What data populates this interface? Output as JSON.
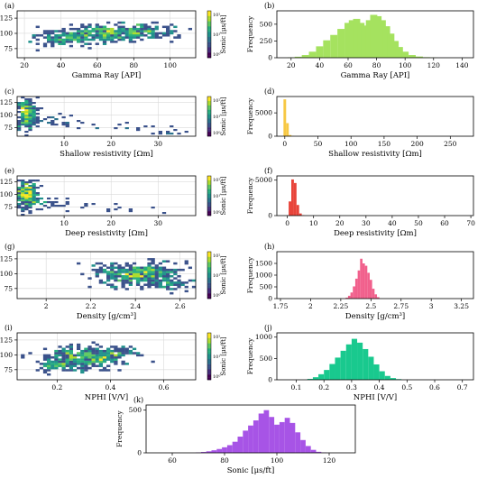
{
  "figure": {
    "colorbar_label": "Sonic [μs/ft]",
    "colorbar_ticks": [
      "10²",
      "10¹",
      "10⁰"
    ],
    "frequency_label": "Frequency"
  },
  "chart_data": [
    {
      "id": "a",
      "panel_label": "(a)",
      "type": "heatmap",
      "xlabel": "Gamma Ray [API]",
      "ylabel": "",
      "xlim": [
        16,
        114
      ],
      "ylim": [
        60,
        137
      ],
      "xticks": [
        20,
        40,
        60,
        80,
        100
      ],
      "yticks": [
        75,
        100,
        125
      ],
      "blobs": [
        {
          "cx": 65,
          "cy": 100,
          "sx": 14,
          "sy": 7,
          "angle": 0.18,
          "n": 320
        },
        {
          "cx": 40,
          "cy": 90,
          "sx": 9,
          "sy": 7,
          "angle": 0.3,
          "n": 90
        },
        {
          "cx": 90,
          "cy": 102,
          "sx": 9,
          "sy": 6,
          "angle": 0,
          "n": 70
        }
      ]
    },
    {
      "id": "b",
      "panel_label": "(b)",
      "type": "bar",
      "xlabel": "Gamma Ray [API]",
      "ylabel": "",
      "xlim": [
        10,
        148
      ],
      "ylim": [
        0,
        700
      ],
      "xticks": [
        20,
        40,
        60,
        80,
        100,
        120,
        140
      ],
      "yticks": [
        0,
        250,
        500
      ],
      "color": "#a5e25f",
      "bins": [
        [
          20,
          5
        ],
        [
          25,
          15
        ],
        [
          30,
          40
        ],
        [
          35,
          90
        ],
        [
          40,
          170
        ],
        [
          45,
          260
        ],
        [
          50,
          340
        ],
        [
          55,
          430
        ],
        [
          60,
          520
        ],
        [
          63,
          560
        ],
        [
          66,
          580
        ],
        [
          69,
          520
        ],
        [
          72,
          480
        ],
        [
          75,
          560
        ],
        [
          78,
          640
        ],
        [
          81,
          620
        ],
        [
          84,
          560
        ],
        [
          87,
          470
        ],
        [
          90,
          360
        ],
        [
          93,
          250
        ],
        [
          96,
          160
        ],
        [
          100,
          90
        ],
        [
          105,
          40
        ],
        [
          110,
          18
        ],
        [
          115,
          8
        ],
        [
          120,
          3
        ]
      ]
    },
    {
      "id": "c",
      "panel_label": "(c)",
      "type": "heatmap",
      "xlabel": "Shallow resistivity [Ωm]",
      "ylabel": "",
      "xlim": [
        0,
        38
      ],
      "ylim": [
        58,
        137
      ],
      "xticks": [
        10,
        20,
        30
      ],
      "yticks": [
        75,
        100,
        125
      ],
      "blobs": [
        {
          "cx": 2,
          "cy": 103,
          "sx": 1.1,
          "sy": 15,
          "angle": 0,
          "n": 260
        },
        {
          "cx": 7,
          "cy": 88,
          "sx": 3,
          "sy": 6,
          "angle": 0,
          "n": 25
        },
        {
          "cx": 20,
          "cy": 75,
          "sx": 8,
          "sy": 6,
          "angle": 0,
          "n": 20
        },
        {
          "cx": 33,
          "cy": 64,
          "sx": 1.5,
          "sy": 1.5,
          "angle": 0,
          "n": 8
        }
      ]
    },
    {
      "id": "d",
      "panel_label": "(d)",
      "type": "bar",
      "xlabel": "Shallow resistivity [Ωm]",
      "ylabel": "Frequency",
      "xlim": [
        -12,
        285
      ],
      "ylim": [
        0,
        8500
      ],
      "xticks": [
        0,
        50,
        100,
        150,
        200,
        250
      ],
      "yticks": [
        0,
        5000
      ],
      "color": "#f7c843",
      "bins": [
        [
          0,
          7900
        ],
        [
          4,
          2800
        ],
        [
          8,
          250
        ],
        [
          12,
          40
        ]
      ]
    },
    {
      "id": "e",
      "panel_label": "(e)",
      "type": "heatmap",
      "xlabel": "Deep resistivity [Ωm]",
      "ylabel": "",
      "xlim": [
        0,
        38
      ],
      "ylim": [
        58,
        137
      ],
      "xticks": [
        10,
        20,
        30
      ],
      "yticks": [
        75,
        100,
        125
      ],
      "blobs": [
        {
          "cx": 2,
          "cy": 100,
          "sx": 1.2,
          "sy": 13,
          "angle": 0,
          "n": 240
        },
        {
          "cx": 7,
          "cy": 82,
          "sx": 3,
          "sy": 7,
          "angle": 0,
          "n": 25
        },
        {
          "cx": 22,
          "cy": 72,
          "sx": 8,
          "sy": 6,
          "angle": 0,
          "n": 18
        }
      ]
    },
    {
      "id": "f",
      "panel_label": "(f)",
      "type": "bar",
      "xlabel": "Deep resistivity [Ωm]",
      "ylabel": "Frequency",
      "xlim": [
        -4,
        71
      ],
      "ylim": [
        0,
        5600
      ],
      "xticks": [
        0,
        10,
        20,
        30,
        40,
        50,
        60,
        70
      ],
      "yticks": [
        0,
        5000
      ],
      "color": "#e8443a",
      "bins": [
        [
          1,
          2000
        ],
        [
          2,
          5100
        ],
        [
          3,
          4600
        ],
        [
          4,
          1500
        ],
        [
          5,
          300
        ],
        [
          6,
          60
        ]
      ]
    },
    {
      "id": "g",
      "panel_label": "(g)",
      "type": "heatmap",
      "xlabel": "Density [g/cm³]",
      "ylabel": "",
      "xlim": [
        1.87,
        2.67
      ],
      "ylim": [
        58,
        137
      ],
      "xticks": [
        2.0,
        2.2,
        2.4,
        2.6
      ],
      "yticks": [
        75,
        100,
        125
      ],
      "blobs": [
        {
          "cx": 2.42,
          "cy": 98,
          "sx": 0.07,
          "sy": 10,
          "angle": -0.55,
          "n": 320
        },
        {
          "cx": 2.3,
          "cy": 108,
          "sx": 0.05,
          "sy": 6,
          "angle": 0,
          "n": 50
        },
        {
          "cx": 2.55,
          "cy": 82,
          "sx": 0.05,
          "sy": 6,
          "angle": 0,
          "n": 50
        }
      ]
    },
    {
      "id": "h",
      "panel_label": "(h)",
      "type": "bar",
      "xlabel": "Density [g/cm³]",
      "ylabel": "Frequency",
      "xlim": [
        1.72,
        3.35
      ],
      "ylim": [
        0,
        2000
      ],
      "xticks": [
        1.75,
        2.0,
        2.25,
        2.5,
        2.75,
        3.0,
        3.25
      ],
      "yticks": [
        0,
        500,
        1000,
        1500
      ],
      "color": "#f1608c",
      "bins": [
        [
          2.3,
          40
        ],
        [
          2.32,
          120
        ],
        [
          2.34,
          260
        ],
        [
          2.36,
          520
        ],
        [
          2.38,
          850
        ],
        [
          2.4,
          1200
        ],
        [
          2.42,
          1700
        ],
        [
          2.44,
          1500
        ],
        [
          2.46,
          1400
        ],
        [
          2.48,
          1100
        ],
        [
          2.5,
          800
        ],
        [
          2.52,
          420
        ],
        [
          2.54,
          180
        ],
        [
          2.56,
          60
        ]
      ]
    },
    {
      "id": "i",
      "panel_label": "(i)",
      "type": "heatmap",
      "xlabel": "NPHI [V/V]",
      "ylabel": "",
      "xlim": [
        0.05,
        0.72
      ],
      "ylim": [
        58,
        137
      ],
      "xticks": [
        0.2,
        0.4,
        0.6
      ],
      "yticks": [
        75,
        100,
        125
      ],
      "blobs": [
        {
          "cx": 0.3,
          "cy": 95,
          "sx": 0.07,
          "sy": 10,
          "angle": 0.55,
          "n": 320
        },
        {
          "cx": 0.2,
          "cy": 82,
          "sx": 0.04,
          "sy": 5,
          "angle": 0,
          "n": 60
        },
        {
          "cx": 0.42,
          "cy": 106,
          "sx": 0.05,
          "sy": 5,
          "angle": 0,
          "n": 50
        }
      ]
    },
    {
      "id": "j",
      "panel_label": "(j)",
      "type": "bar",
      "xlabel": "NPHI [V/V]",
      "ylabel": "Frequency",
      "xlim": [
        0.03,
        0.74
      ],
      "ylim": [
        0,
        1100
      ],
      "xticks": [
        0.1,
        0.2,
        0.3,
        0.4,
        0.5,
        0.6,
        0.7
      ],
      "yticks": [
        0,
        500,
        1000
      ],
      "color": "#19c98e",
      "bins": [
        [
          0.15,
          20
        ],
        [
          0.17,
          60
        ],
        [
          0.19,
          130
        ],
        [
          0.21,
          230
        ],
        [
          0.23,
          370
        ],
        [
          0.25,
          520
        ],
        [
          0.27,
          680
        ],
        [
          0.29,
          830
        ],
        [
          0.31,
          960
        ],
        [
          0.33,
          870
        ],
        [
          0.35,
          720
        ],
        [
          0.37,
          540
        ],
        [
          0.39,
          360
        ],
        [
          0.41,
          200
        ],
        [
          0.43,
          90
        ],
        [
          0.45,
          40
        ],
        [
          0.47,
          15
        ]
      ]
    },
    {
      "id": "k",
      "panel_label": "(k)",
      "type": "bar",
      "xlabel": "Sonic [μs/ft]",
      "ylabel": "Frequency",
      "xlim": [
        50,
        130
      ],
      "ylim": [
        0,
        560
      ],
      "xticks": [
        60,
        80,
        100,
        120
      ],
      "yticks": [
        0,
        500
      ],
      "color": "#a754e6",
      "bins": [
        [
          70,
          5
        ],
        [
          72,
          10
        ],
        [
          74,
          18
        ],
        [
          76,
          30
        ],
        [
          78,
          45
        ],
        [
          80,
          65
        ],
        [
          82,
          90
        ],
        [
          84,
          130
        ],
        [
          86,
          190
        ],
        [
          88,
          260
        ],
        [
          90,
          320
        ],
        [
          92,
          380
        ],
        [
          94,
          460
        ],
        [
          96,
          500
        ],
        [
          98,
          420
        ],
        [
          100,
          330
        ],
        [
          102,
          360
        ],
        [
          104,
          410
        ],
        [
          106,
          350
        ],
        [
          108,
          240
        ],
        [
          110,
          150
        ],
        [
          112,
          80
        ],
        [
          114,
          35
        ],
        [
          116,
          12
        ],
        [
          118,
          4
        ]
      ]
    }
  ]
}
